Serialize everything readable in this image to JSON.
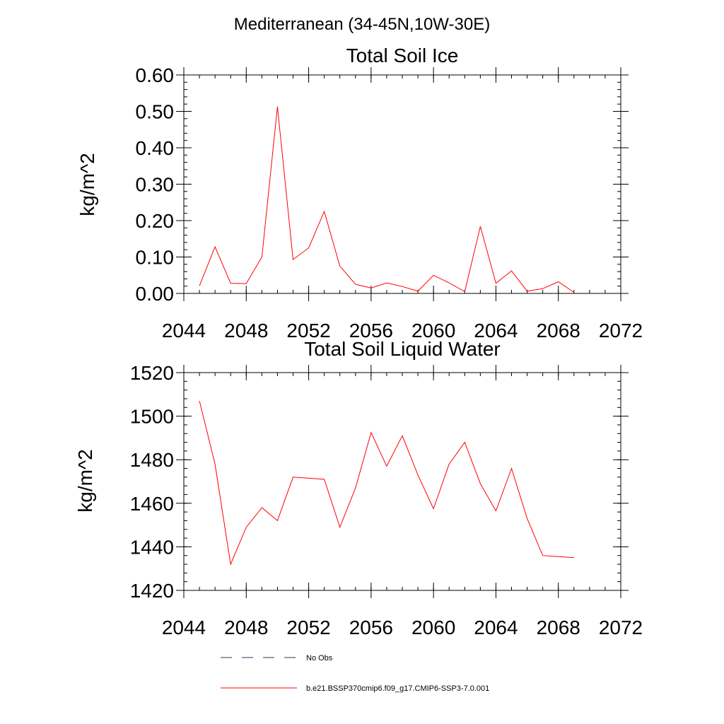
{
  "figure": {
    "suptitle": "Mediterranean (34-45N,10W-30E)"
  },
  "chart_data": [
    {
      "type": "line",
      "title": "Total Soil Ice",
      "ylabel": "kg/m^2",
      "xlabel": "",
      "xlim": [
        2044,
        2072
      ],
      "ylim": [
        0.0,
        0.6
      ],
      "xticks": [
        2044,
        2048,
        2052,
        2056,
        2060,
        2064,
        2068,
        2072
      ],
      "xtick_labels": [
        "2044",
        "2048",
        "2052",
        "2056",
        "2060",
        "2064",
        "2068",
        "2072"
      ],
      "yticks": [
        0.0,
        0.1,
        0.2,
        0.3,
        0.4,
        0.5,
        0.6
      ],
      "ytick_labels": [
        "0.00",
        "0.10",
        "0.20",
        "0.30",
        "0.40",
        "0.50",
        "0.60"
      ],
      "grid": false,
      "series": [
        {
          "name": "b.e21.BSSP370cmip6.f09_g17.CMIP6-SSP3-7.0.001",
          "color": "#ff0000",
          "x": [
            2045,
            2046,
            2047,
            2048,
            2049,
            2050,
            2051,
            2052,
            2053,
            2054,
            2055,
            2056,
            2057,
            2058,
            2059,
            2060,
            2061,
            2062,
            2063,
            2064,
            2065,
            2066,
            2067,
            2068,
            2069
          ],
          "y": [
            0.021,
            0.128,
            0.028,
            0.027,
            0.1,
            0.513,
            0.093,
            0.125,
            0.225,
            0.075,
            0.025,
            0.015,
            0.029,
            0.019,
            0.006,
            0.05,
            0.029,
            0.005,
            0.184,
            0.028,
            0.062,
            0.006,
            0.013,
            0.032,
            0.003
          ]
        }
      ]
    },
    {
      "type": "line",
      "title": "Total Soil Liquid Water",
      "ylabel": "kg/m^2",
      "xlabel": "",
      "xlim": [
        2044,
        2072
      ],
      "ylim": [
        1420,
        1520
      ],
      "xticks": [
        2044,
        2048,
        2052,
        2056,
        2060,
        2064,
        2068,
        2072
      ],
      "xtick_labels": [
        "2044",
        "2048",
        "2052",
        "2056",
        "2060",
        "2064",
        "2068",
        "2072"
      ],
      "yticks": [
        1420,
        1440,
        1460,
        1480,
        1500,
        1520
      ],
      "ytick_labels": [
        "1420",
        "1440",
        "1460",
        "1480",
        "1500",
        "1520"
      ],
      "grid": false,
      "series": [
        {
          "name": "b.e21.BSSP370cmip6.f09_g17.CMIP6-SSP3-7.0.001",
          "color": "#ff0000",
          "x": [
            2045,
            2046,
            2047,
            2048,
            2049,
            2050,
            2051,
            2052,
            2053,
            2054,
            2055,
            2056,
            2057,
            2058,
            2059,
            2060,
            2061,
            2062,
            2063,
            2064,
            2065,
            2066,
            2067,
            2068,
            2069
          ],
          "y": [
            1507,
            1478,
            1432,
            1449,
            1458,
            1452,
            1472,
            1471.5,
            1471,
            1449,
            1467,
            1492.5,
            1477,
            1491,
            1473,
            1457.5,
            1478,
            1488,
            1469,
            1456.5,
            1476,
            1453,
            1436,
            1435.5,
            1435
          ]
        }
      ]
    }
  ],
  "legend": {
    "placement": "bottom",
    "entries": [
      {
        "label": "No Obs",
        "style": "dashed",
        "color": "#333366"
      },
      {
        "label": "b.e21.BSSP370cmip6.f09_g17.CMIP6-SSP3-7.0.001",
        "style": "solid",
        "color": "#ff0000"
      }
    ]
  }
}
